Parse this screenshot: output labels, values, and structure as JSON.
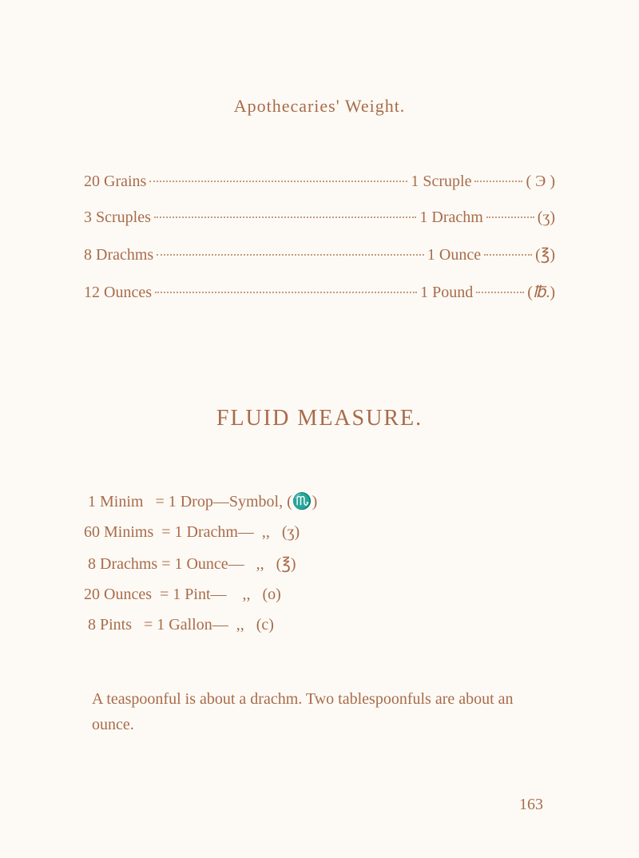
{
  "title": "Apothecaries' Weight.",
  "conversions": [
    {
      "qty": "20",
      "from": "Grains",
      "to": "Scruple",
      "sym": "( Э )"
    },
    {
      "qty": "3",
      "from": "Scruples",
      "to": "Drachm",
      "sym": "(ʒ)"
    },
    {
      "qty": "8",
      "from": "Drachms",
      "to": "Ounce",
      "sym": "(℥)"
    },
    {
      "qty": "12",
      "from": "Ounces",
      "to": "Pound",
      "sym": "(℔.)"
    }
  ],
  "section_title": "FLUID MEASURE.",
  "fluid": [
    {
      "left": " 1 Minim   = 1 Drop—Symbol, ",
      "sym": "(♏)"
    },
    {
      "left": "60 Minims  = 1 Drachm—  ,,   ",
      "sym": "(ʒ)"
    },
    {
      "left": " 8 Drachms = 1 Ounce—   ,,   ",
      "sym": "(℥)"
    },
    {
      "left": "20 Ounces  = 1 Pint—    ,,   ",
      "sym": "(o)"
    },
    {
      "left": " 8 Pints   = 1 Gallon—  ,,   ",
      "sym": "(c)"
    }
  ],
  "footer": "A teaspoonful is about a drachm.   Two tablespoonfuls are about an ounce.",
  "page": "163"
}
